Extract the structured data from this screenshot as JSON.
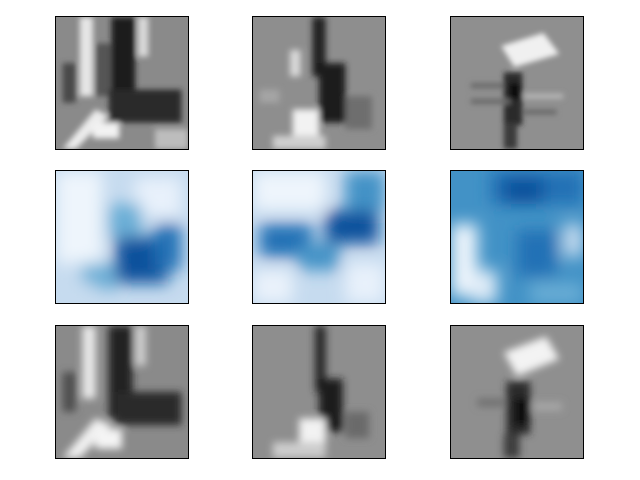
{
  "figure": {
    "rows": [
      {
        "row_name": "grayscale-input",
        "colormap": "gray",
        "panels": [
          {
            "name": "image-panel-r1c1"
          },
          {
            "name": "image-panel-r1c2"
          },
          {
            "name": "image-panel-r1c3"
          }
        ]
      },
      {
        "row_name": "blue-heatmap",
        "colormap": "Blues",
        "panels": [
          {
            "name": "heatmap-panel-r2c1"
          },
          {
            "name": "heatmap-panel-r2c2"
          },
          {
            "name": "heatmap-panel-r2c3"
          }
        ]
      },
      {
        "row_name": "grayscale-reconstruction",
        "colormap": "gray",
        "panels": [
          {
            "name": "image-panel-r3c1"
          },
          {
            "name": "image-panel-r3c2"
          },
          {
            "name": "image-panel-r3c3"
          }
        ]
      }
    ],
    "colors": {
      "background": "#ffffff",
      "frame": "#000000",
      "gray_mid": "#8c8c8c",
      "gray_dark": "#1a1a1a",
      "gray_light": "#f2f2f2",
      "blue_light": "#e8f1fb",
      "blue_mid": "#6aaed6",
      "blue_dark": "#08519c"
    }
  }
}
